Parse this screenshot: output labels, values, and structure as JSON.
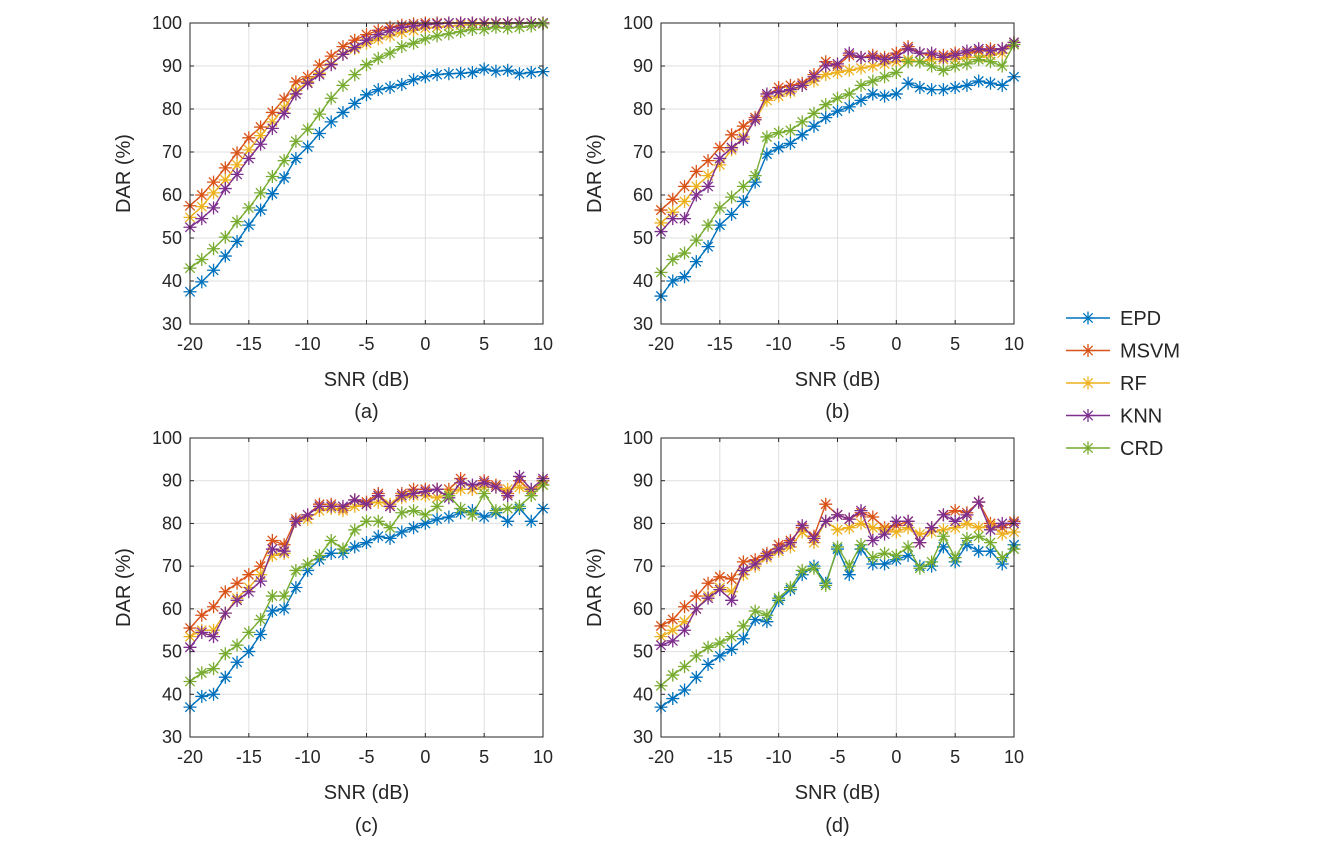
{
  "legend": {
    "entries": [
      {
        "name": "EPD",
        "color": "#0072BD"
      },
      {
        "name": "MSVM",
        "color": "#D95319"
      },
      {
        "name": "RF",
        "color": "#EDB120"
      },
      {
        "name": "KNN",
        "color": "#7E2F8E"
      },
      {
        "name": "CRD",
        "color": "#77AC30"
      }
    ],
    "placement": "right"
  },
  "chart_data": [
    {
      "type": "line",
      "caption": "(a)",
      "xlabel": "SNR (dB)",
      "ylabel": "DAR (%)",
      "xlim": [
        -20,
        10
      ],
      "ylim": [
        30,
        100
      ],
      "xticks": [
        -20,
        -15,
        -10,
        -5,
        0,
        5,
        10
      ],
      "yticks": [
        30,
        40,
        50,
        60,
        70,
        80,
        90,
        100
      ],
      "grid": true,
      "marker": "asterisk",
      "x": [
        -20,
        -19,
        -18,
        -17,
        -16,
        -15,
        -14,
        -13,
        -12,
        -11,
        -10,
        -9,
        -8,
        -7,
        -6,
        -5,
        -4,
        -3,
        -2,
        -1,
        0,
        1,
        2,
        3,
        4,
        5,
        6,
        7,
        8,
        9,
        10
      ],
      "series": [
        {
          "name": "EPD",
          "values": [
            37.5,
            39.8,
            42.5,
            45.8,
            49.2,
            53.0,
            56.5,
            60.3,
            64.0,
            68.5,
            71.2,
            74.3,
            77.0,
            79.2,
            81.3,
            83.3,
            84.5,
            85.0,
            85.7,
            86.8,
            87.5,
            88.0,
            88.2,
            88.3,
            88.5,
            89.3,
            88.8,
            89.0,
            88.2,
            88.5,
            88.7
          ]
        },
        {
          "name": "MSVM",
          "values": [
            57.5,
            60.0,
            63.0,
            66.3,
            69.8,
            73.3,
            75.8,
            79.2,
            82.3,
            86.3,
            87.5,
            90.2,
            92.3,
            94.5,
            96.0,
            97.3,
            98.3,
            99.0,
            99.5,
            99.8,
            100,
            100,
            100,
            100,
            100,
            100,
            100,
            100,
            100,
            100,
            100
          ]
        },
        {
          "name": "RF",
          "values": [
            54.8,
            57.3,
            60.5,
            63.5,
            67.0,
            70.5,
            73.8,
            77.0,
            80.2,
            84.3,
            86.3,
            88.3,
            90.5,
            92.8,
            94.0,
            95.3,
            96.3,
            97.0,
            97.8,
            98.3,
            98.8,
            99.0,
            99.3,
            99.5,
            99.7,
            99.8,
            99.8,
            99.9,
            100,
            100,
            100
          ]
        },
        {
          "name": "KNN",
          "values": [
            52.5,
            54.5,
            57.0,
            61.5,
            64.8,
            68.5,
            71.8,
            75.5,
            79.0,
            83.5,
            86.0,
            88.0,
            90.3,
            92.7,
            94.3,
            96.0,
            97.3,
            98.2,
            99.0,
            99.3,
            99.6,
            99.8,
            100,
            100,
            100,
            100,
            100,
            100,
            100,
            100,
            100
          ]
        },
        {
          "name": "CRD",
          "values": [
            43.0,
            45.0,
            47.5,
            50.2,
            53.8,
            57.0,
            60.5,
            64.3,
            68.0,
            72.5,
            75.3,
            78.8,
            82.5,
            85.5,
            88.0,
            90.3,
            91.8,
            93.0,
            94.5,
            95.3,
            96.3,
            97.0,
            97.5,
            98.0,
            98.5,
            98.5,
            99.0,
            98.8,
            99.0,
            99.3,
            99.8
          ]
        }
      ]
    },
    {
      "type": "line",
      "caption": "(b)",
      "xlabel": "SNR (dB)",
      "ylabel": "DAR (%)",
      "xlim": [
        -20,
        10
      ],
      "ylim": [
        30,
        100
      ],
      "xticks": [
        -20,
        -15,
        -10,
        -5,
        0,
        5,
        10
      ],
      "yticks": [
        30,
        40,
        50,
        60,
        70,
        80,
        90,
        100
      ],
      "grid": true,
      "marker": "asterisk",
      "x": [
        -20,
        -19,
        -18,
        -17,
        -16,
        -15,
        -14,
        -13,
        -12,
        -11,
        -10,
        -9,
        -8,
        -7,
        -6,
        -5,
        -4,
        -3,
        -2,
        -1,
        0,
        1,
        2,
        3,
        4,
        5,
        6,
        7,
        8,
        9,
        10
      ],
      "series": [
        {
          "name": "EPD",
          "values": [
            36.5,
            40.0,
            41.0,
            44.5,
            48.0,
            53.0,
            55.5,
            58.5,
            63.0,
            69.5,
            71.0,
            72.0,
            74.0,
            76.0,
            78.0,
            79.5,
            80.5,
            82.0,
            83.5,
            83.0,
            83.5,
            86.0,
            85.0,
            84.5,
            84.5,
            85.0,
            85.5,
            86.5,
            86.0,
            85.5,
            87.5
          ]
        },
        {
          "name": "MSVM",
          "values": [
            56.5,
            59.0,
            62.0,
            65.5,
            68.0,
            71.0,
            74.0,
            76.0,
            78.0,
            83.0,
            85.0,
            85.5,
            86.0,
            88.0,
            91.0,
            90.0,
            92.5,
            92.0,
            92.5,
            92.0,
            93.0,
            94.5,
            93.0,
            92.5,
            92.5,
            93.0,
            93.0,
            93.5,
            94.0,
            94.0,
            95.0
          ]
        },
        {
          "name": "RF",
          "values": [
            53.5,
            56.0,
            58.5,
            62.0,
            64.5,
            67.0,
            70.5,
            73.5,
            77.5,
            82.0,
            83.0,
            84.0,
            85.5,
            86.5,
            88.0,
            88.5,
            89.0,
            89.5,
            90.0,
            90.5,
            91.0,
            91.5,
            91.0,
            91.5,
            91.5,
            91.5,
            92.0,
            92.0,
            92.5,
            93.0,
            95.5
          ]
        },
        {
          "name": "KNN",
          "values": [
            51.5,
            54.5,
            54.5,
            60.0,
            62.0,
            68.5,
            71.0,
            73.0,
            77.5,
            83.5,
            84.0,
            84.5,
            85.5,
            87.5,
            90.0,
            90.5,
            93.0,
            92.0,
            92.0,
            91.5,
            92.0,
            94.0,
            93.0,
            93.0,
            92.0,
            92.5,
            93.5,
            94.0,
            93.5,
            94.0,
            95.5
          ]
        },
        {
          "name": "CRD",
          "values": [
            42.0,
            45.0,
            46.5,
            49.5,
            53.0,
            57.0,
            59.5,
            62.0,
            64.5,
            73.5,
            74.5,
            75.0,
            77.0,
            79.0,
            81.0,
            82.5,
            83.5,
            85.5,
            86.5,
            87.5,
            88.5,
            91.0,
            91.0,
            90.0,
            89.0,
            90.0,
            90.5,
            91.5,
            91.0,
            90.0,
            95.0
          ]
        }
      ]
    },
    {
      "type": "line",
      "caption": "(c)",
      "xlabel": "SNR (dB)",
      "ylabel": "DAR (%)",
      "xlim": [
        -20,
        10
      ],
      "ylim": [
        30,
        100
      ],
      "xticks": [
        -20,
        -15,
        -10,
        -5,
        0,
        5,
        10
      ],
      "yticks": [
        30,
        40,
        50,
        60,
        70,
        80,
        90,
        100
      ],
      "grid": true,
      "marker": "asterisk",
      "x": [
        -20,
        -19,
        -18,
        -17,
        -16,
        -15,
        -14,
        -13,
        -12,
        -11,
        -10,
        -9,
        -8,
        -7,
        -6,
        -5,
        -4,
        -3,
        -2,
        -1,
        0,
        1,
        2,
        3,
        4,
        5,
        6,
        7,
        8,
        9,
        10
      ],
      "series": [
        {
          "name": "EPD",
          "values": [
            37.0,
            39.5,
            40.0,
            44.0,
            47.5,
            50.0,
            54.0,
            59.5,
            60.0,
            65.0,
            69.0,
            71.5,
            73.0,
            73.0,
            74.5,
            75.5,
            77.0,
            76.5,
            78.0,
            79.0,
            80.0,
            81.0,
            81.5,
            82.5,
            83.0,
            81.5,
            82.5,
            80.5,
            83.5,
            80.5,
            83.5
          ]
        },
        {
          "name": "MSVM",
          "values": [
            55.5,
            58.5,
            60.5,
            64.0,
            66.0,
            68.0,
            70.0,
            76.0,
            75.0,
            81.0,
            82.0,
            84.5,
            84.5,
            83.5,
            85.5,
            85.0,
            87.0,
            84.0,
            87.0,
            88.0,
            88.0,
            88.0,
            88.0,
            90.5,
            88.0,
            90.0,
            89.0,
            87.0,
            90.0,
            87.5,
            90.0
          ]
        },
        {
          "name": "RF",
          "values": [
            53.5,
            55.0,
            55.0,
            59.0,
            62.5,
            65.0,
            68.0,
            72.5,
            73.0,
            80.5,
            81.0,
            83.0,
            83.5,
            83.0,
            84.0,
            84.5,
            85.0,
            84.5,
            86.0,
            86.5,
            86.5,
            86.0,
            87.0,
            88.0,
            88.0,
            88.5,
            88.5,
            88.0,
            88.5,
            87.5,
            89.0
          ]
        },
        {
          "name": "KNN",
          "values": [
            51.0,
            54.5,
            53.5,
            59.0,
            62.0,
            64.0,
            66.5,
            74.0,
            73.5,
            80.5,
            82.0,
            84.0,
            84.0,
            84.0,
            85.5,
            84.5,
            86.5,
            84.0,
            86.5,
            87.0,
            87.5,
            88.0,
            86.0,
            89.5,
            89.0,
            89.5,
            88.5,
            86.5,
            91.0,
            88.0,
            90.5
          ]
        },
        {
          "name": "CRD",
          "values": [
            43.0,
            45.0,
            46.0,
            49.5,
            51.5,
            54.5,
            57.5,
            63.0,
            63.0,
            69.0,
            70.5,
            72.5,
            76.0,
            74.0,
            78.5,
            80.5,
            80.5,
            79.0,
            82.5,
            83.0,
            82.0,
            84.0,
            86.5,
            83.5,
            82.0,
            87.0,
            83.0,
            83.5,
            84.0,
            86.5,
            89.0
          ]
        }
      ]
    },
    {
      "type": "line",
      "caption": "(d)",
      "xlabel": "SNR (dB)",
      "ylabel": "DAR (%)",
      "xlim": [
        -20,
        10
      ],
      "ylim": [
        30,
        100
      ],
      "xticks": [
        -20,
        -15,
        -10,
        -5,
        0,
        5,
        10
      ],
      "yticks": [
        30,
        40,
        50,
        60,
        70,
        80,
        90,
        100
      ],
      "grid": true,
      "marker": "asterisk",
      "x": [
        -20,
        -19,
        -18,
        -17,
        -16,
        -15,
        -14,
        -13,
        -12,
        -11,
        -10,
        -9,
        -8,
        -7,
        -6,
        -5,
        -4,
        -3,
        -2,
        -1,
        0,
        1,
        2,
        3,
        4,
        5,
        6,
        7,
        8,
        9,
        10
      ],
      "series": [
        {
          "name": "EPD",
          "values": [
            37.0,
            39.0,
            41.0,
            44.0,
            47.0,
            49.0,
            50.5,
            53.0,
            57.5,
            57.0,
            62.0,
            64.5,
            68.0,
            70.0,
            66.0,
            74.0,
            68.0,
            74.0,
            70.5,
            70.5,
            71.5,
            72.5,
            70.0,
            70.0,
            74.5,
            71.0,
            75.0,
            73.5,
            73.5,
            70.5,
            75.0
          ]
        },
        {
          "name": "MSVM",
          "values": [
            56.0,
            57.5,
            60.5,
            63.0,
            66.0,
            67.5,
            67.0,
            71.0,
            71.5,
            73.0,
            75.0,
            76.0,
            79.0,
            77.0,
            84.5,
            82.0,
            81.0,
            82.5,
            81.5,
            79.0,
            79.5,
            80.5,
            75.5,
            79.0,
            82.0,
            83.0,
            82.5,
            85.0,
            80.0,
            79.0,
            80.5
          ]
        },
        {
          "name": "RF",
          "values": [
            53.5,
            55.0,
            57.0,
            60.0,
            63.0,
            65.0,
            64.0,
            68.0,
            70.0,
            72.0,
            73.5,
            74.5,
            78.0,
            75.5,
            80.5,
            78.5,
            79.0,
            80.0,
            79.0,
            78.5,
            78.0,
            79.0,
            77.5,
            78.0,
            78.5,
            79.0,
            80.0,
            79.0,
            79.5,
            77.5,
            78.0
          ]
        },
        {
          "name": "KNN",
          "values": [
            51.5,
            52.5,
            55.0,
            60.0,
            62.5,
            64.5,
            62.0,
            69.0,
            70.5,
            72.5,
            74.0,
            75.5,
            79.5,
            76.5,
            80.5,
            82.0,
            81.0,
            83.0,
            76.0,
            77.5,
            80.5,
            80.5,
            75.5,
            79.0,
            82.0,
            80.5,
            82.0,
            85.0,
            78.5,
            80.0,
            80.0
          ]
        },
        {
          "name": "CRD",
          "values": [
            42.0,
            44.5,
            46.5,
            49.0,
            51.0,
            52.0,
            53.5,
            56.0,
            59.5,
            58.5,
            62.5,
            65.0,
            69.0,
            69.5,
            65.5,
            74.5,
            70.0,
            75.0,
            72.0,
            73.0,
            72.5,
            74.5,
            69.5,
            71.0,
            77.0,
            72.0,
            76.5,
            77.0,
            75.5,
            72.0,
            74.0
          ]
        }
      ]
    }
  ]
}
